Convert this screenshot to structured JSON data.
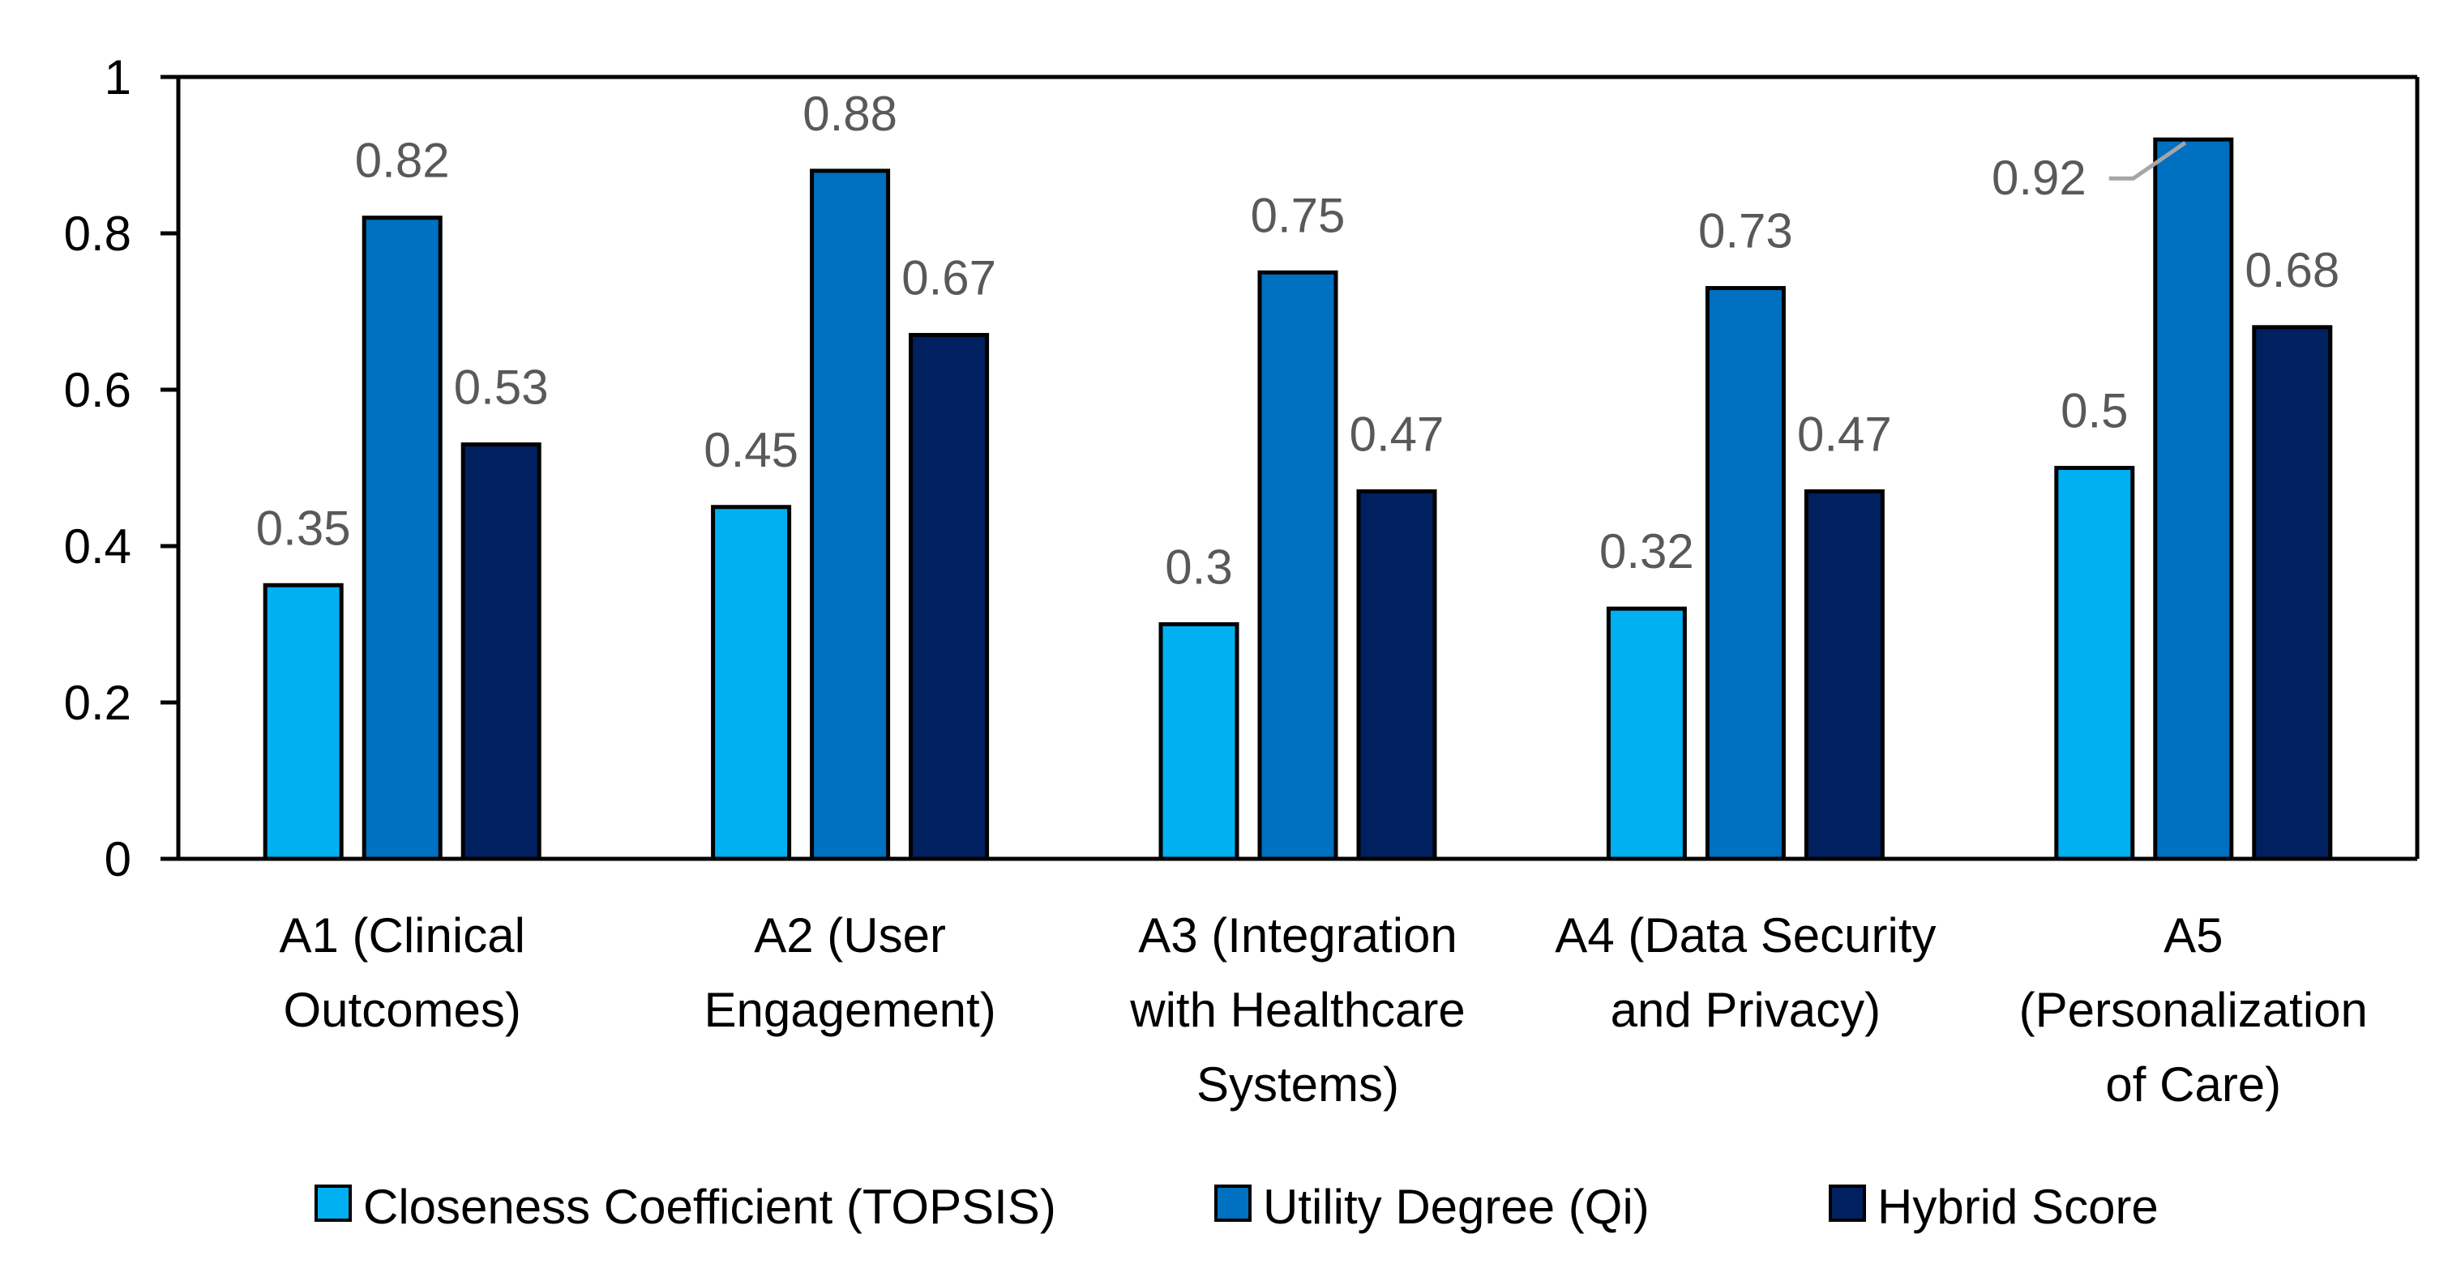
{
  "chart_data": {
    "type": "bar",
    "title": "",
    "xlabel": "",
    "ylabel": "",
    "ylim": [
      0,
      1
    ],
    "yticks": [
      "0",
      "0.2",
      "0.4",
      "0.6",
      "0.8",
      "1"
    ],
    "ytick_values": [
      0,
      0.2,
      0.4,
      0.6,
      0.8,
      1
    ],
    "grid": false,
    "legend_position": "bottom",
    "categories": [
      [
        "A1 (Clinical",
        "Outcomes)"
      ],
      [
        "A2 (User",
        "Engagement)"
      ],
      [
        "A3 (Integration",
        "with Healthcare",
        "Systems)"
      ],
      [
        "A4 (Data Security",
        "and Privacy)"
      ],
      [
        "A5",
        "(Personalization",
        "of Care)"
      ]
    ],
    "series": [
      {
        "name": "Closeness Coefficient (TOPSIS)",
        "color": "#00B0F0",
        "values": [
          0.35,
          0.45,
          0.3,
          0.32,
          0.5
        ],
        "labels": [
          "0.35",
          "0.45",
          "0.3",
          "0.32",
          "0.5"
        ]
      },
      {
        "name": "Utility Degree (Qi)",
        "color": "#0070C0",
        "values": [
          0.82,
          0.88,
          0.75,
          0.73,
          0.92
        ],
        "labels": [
          "0.82",
          "0.88",
          "0.75",
          "0.73",
          "0.92"
        ]
      },
      {
        "name": "Hybrid Score",
        "color": "#002060",
        "values": [
          0.53,
          0.67,
          0.47,
          0.47,
          0.68
        ],
        "labels": [
          "0.53",
          "0.67",
          "0.47",
          "0.47",
          "0.68"
        ]
      }
    ]
  }
}
